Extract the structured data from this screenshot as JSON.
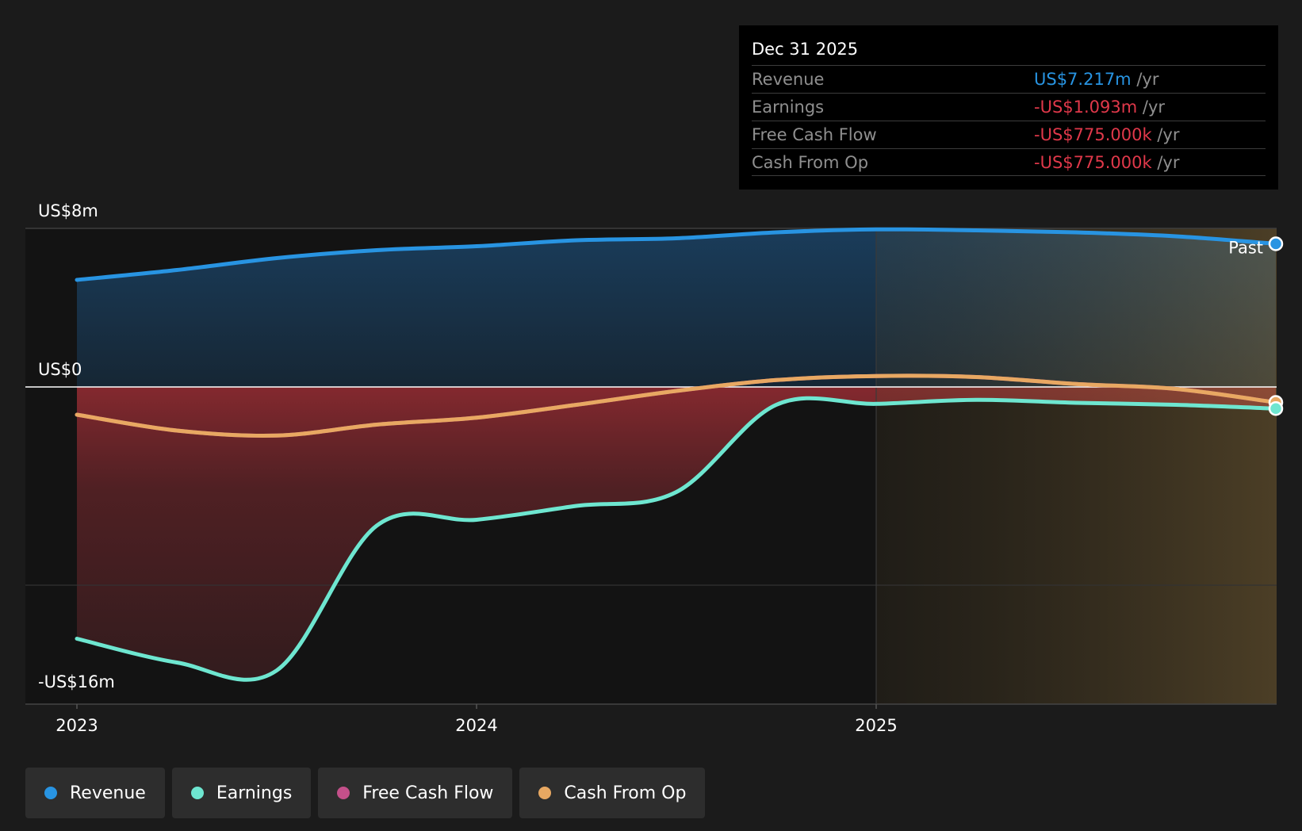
{
  "tooltip": {
    "date": "Dec 31 2025",
    "rows": [
      {
        "label": "Revenue",
        "value": "US$7.217m",
        "unit": " /yr",
        "color": "#2894e2"
      },
      {
        "label": "Earnings",
        "value": "-US$1.093m",
        "unit": " /yr",
        "color": "#e0384a"
      },
      {
        "label": "Free Cash Flow",
        "value": "-US$775.000k",
        "unit": " /yr",
        "color": "#e0384a"
      },
      {
        "label": "Cash From Op",
        "value": "-US$775.000k",
        "unit": " /yr",
        "color": "#e0384a"
      }
    ]
  },
  "legend": [
    {
      "label": "Revenue",
      "color": "#2894e2"
    },
    {
      "label": "Earnings",
      "color": "#6ee6d0"
    },
    {
      "label": "Free Cash Flow",
      "color": "#c4508a"
    },
    {
      "label": "Cash From Op",
      "color": "#e8a862"
    }
  ],
  "chart_data": {
    "type": "line",
    "ylabels": [
      "US$8m",
      "US$0",
      "-US$16m"
    ],
    "ylim": [
      -16,
      8
    ],
    "xlim": [
      2023.0,
      2026.0
    ],
    "x_ticks": [
      {
        "value": 2023,
        "label": "2023"
      },
      {
        "value": 2024,
        "label": "2024"
      },
      {
        "value": 2025,
        "label": "2025"
      }
    ],
    "past_label": "Past",
    "past_start": 2025.0,
    "series": [
      {
        "name": "Revenue",
        "color": "#2894e2",
        "x": [
          2023.0,
          2023.25,
          2023.5,
          2023.75,
          2024.0,
          2024.25,
          2024.5,
          2024.75,
          2025.0,
          2025.25,
          2025.5,
          2025.75,
          2026.0
        ],
        "y": [
          5.4,
          5.9,
          6.5,
          6.9,
          7.1,
          7.4,
          7.5,
          7.8,
          7.95,
          7.9,
          7.8,
          7.6,
          7.22
        ]
      },
      {
        "name": "Earnings",
        "color": "#6ee6d0",
        "x": [
          2023.0,
          2023.25,
          2023.5,
          2023.75,
          2024.0,
          2024.25,
          2024.5,
          2024.75,
          2025.0,
          2025.25,
          2025.5,
          2025.75,
          2026.0
        ],
        "y": [
          -12.7,
          -13.9,
          -14.3,
          -7.0,
          -6.7,
          -6.0,
          -5.3,
          -0.9,
          -0.85,
          -0.65,
          -0.8,
          -0.9,
          -1.09
        ]
      },
      {
        "name": "Cash From Op",
        "color": "#e8a862",
        "x": [
          2023.0,
          2023.25,
          2023.5,
          2023.75,
          2024.0,
          2024.25,
          2024.5,
          2024.75,
          2025.0,
          2025.25,
          2025.5,
          2025.75,
          2026.0
        ],
        "y": [
          -1.4,
          -2.2,
          -2.45,
          -1.9,
          -1.55,
          -0.9,
          -0.2,
          0.35,
          0.55,
          0.5,
          0.15,
          -0.1,
          -0.78
        ]
      },
      {
        "name": "Free Cash Flow",
        "color": "#c4508a",
        "x": [
          2023.0,
          2023.25,
          2023.5,
          2023.75,
          2024.0,
          2024.25,
          2024.5,
          2024.75,
          2025.0,
          2025.25,
          2025.5,
          2025.75,
          2026.0
        ],
        "y": [
          -1.4,
          -2.2,
          -2.45,
          -1.9,
          -1.55,
          -0.9,
          -0.2,
          0.35,
          0.55,
          0.5,
          0.15,
          -0.1,
          -0.78
        ]
      }
    ]
  }
}
